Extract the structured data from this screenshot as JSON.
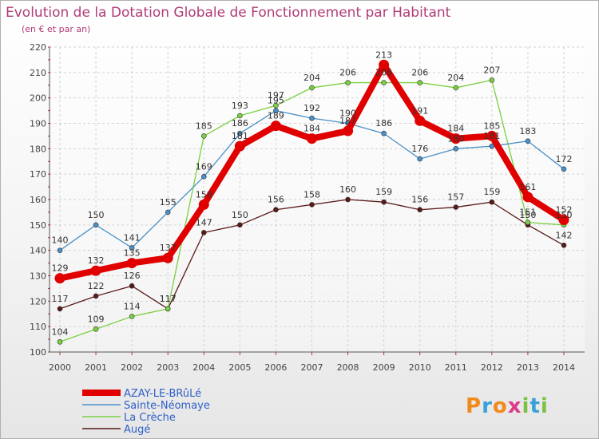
{
  "title": "Evolution de la Dotation Globale de Fonctionnement par Habitant",
  "subtitle": "(en € et par an)",
  "logo": "Proxiti",
  "chart_data": {
    "type": "line",
    "x": [
      "2000",
      "2001",
      "2002",
      "2003",
      "2004",
      "2005",
      "2006",
      "2007",
      "2008",
      "2009",
      "2010",
      "2011",
      "2012",
      "2013",
      "2014"
    ],
    "ylim": [
      100,
      220
    ],
    "yticks": [
      100,
      110,
      120,
      130,
      140,
      150,
      160,
      170,
      180,
      190,
      200,
      210,
      220
    ],
    "grid": true,
    "legend_position": "bottom-left",
    "series": [
      {
        "name": "AZAY-LE-BRûLé",
        "color": "#e00000",
        "values": [
          129,
          132,
          135,
          137,
          158,
          181,
          189,
          184,
          187,
          213,
          191,
          184,
          185,
          161,
          152
        ]
      },
      {
        "name": "Sainte-Néomaye",
        "color": "#4a90c8",
        "values": [
          140,
          150,
          141,
          155,
          169,
          186,
          195,
          192,
          190,
          186,
          176,
          180,
          181,
          183,
          172
        ]
      },
      {
        "name": "La Crèche",
        "color": "#7ad040",
        "values": [
          104,
          109,
          114,
          117,
          185,
          193,
          197,
          204,
          206,
          206,
          206,
          204,
          207,
          151,
          150
        ]
      },
      {
        "name": "Augé",
        "color": "#5a1818",
        "values": [
          117,
          122,
          126,
          117,
          147,
          150,
          156,
          158,
          160,
          159,
          156,
          157,
          159,
          150,
          142
        ]
      }
    ]
  }
}
